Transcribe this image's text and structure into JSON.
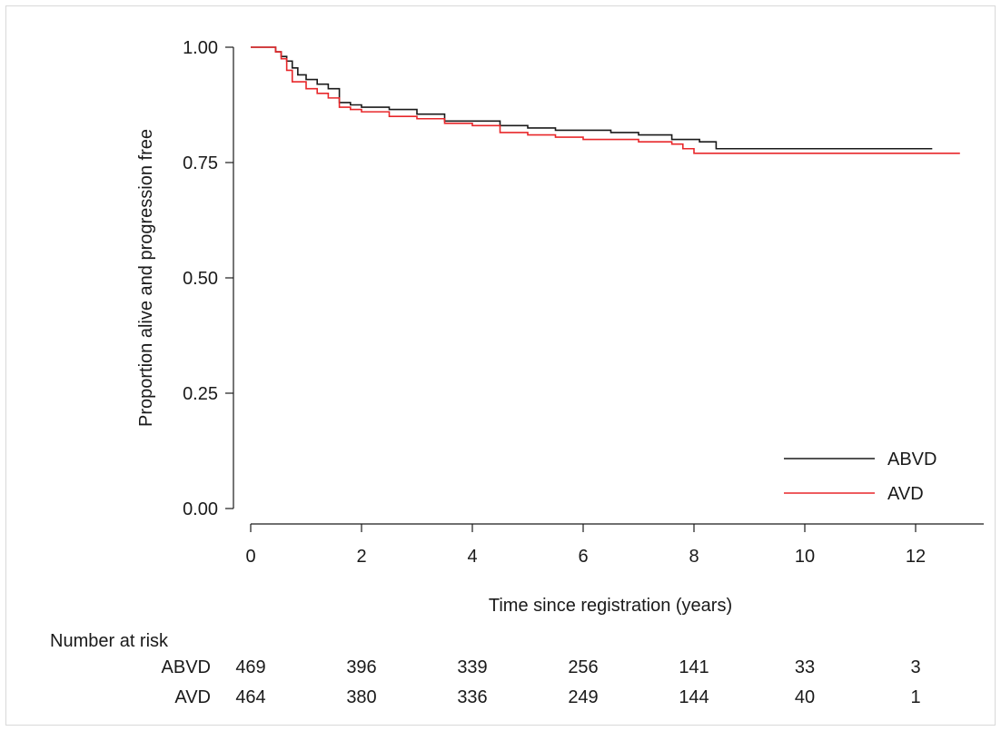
{
  "chart_data": {
    "type": "line",
    "subtype": "kaplan-meier step",
    "title": "",
    "xlabel": "Time since registration (years)",
    "ylabel": "Proportion alive and progression free",
    "xlim": [
      0,
      13
    ],
    "ylim": [
      0,
      1
    ],
    "x_ticks": [
      "0",
      "2",
      "4",
      "6",
      "8",
      "10",
      "12"
    ],
    "y_ticks": [
      "0.00",
      "0.25",
      "0.50",
      "0.75",
      "1.00"
    ],
    "grid": false,
    "legend_position": "bottom-right",
    "legend": [
      "ABVD",
      "AVD"
    ],
    "colors": {
      "ABVD": "#1a1a1a",
      "AVD": "#e8272a"
    },
    "series": [
      {
        "name": "ABVD",
        "points": [
          [
            0,
            1.0
          ],
          [
            0.3,
            1.0
          ],
          [
            0.45,
            0.99
          ],
          [
            0.55,
            0.98
          ],
          [
            0.65,
            0.97
          ],
          [
            0.75,
            0.955
          ],
          [
            0.85,
            0.94
          ],
          [
            1.0,
            0.93
          ],
          [
            1.2,
            0.92
          ],
          [
            1.4,
            0.91
          ],
          [
            1.6,
            0.88
          ],
          [
            1.8,
            0.875
          ],
          [
            2.0,
            0.87
          ],
          [
            2.5,
            0.865
          ],
          [
            3.0,
            0.855
          ],
          [
            3.5,
            0.84
          ],
          [
            4.0,
            0.84
          ],
          [
            4.5,
            0.83
          ],
          [
            5.0,
            0.825
          ],
          [
            5.5,
            0.82
          ],
          [
            6.0,
            0.82
          ],
          [
            6.5,
            0.815
          ],
          [
            7.0,
            0.81
          ],
          [
            7.6,
            0.8
          ],
          [
            8.1,
            0.795
          ],
          [
            8.4,
            0.78
          ],
          [
            10.0,
            0.78
          ],
          [
            12.3,
            0.78
          ]
        ]
      },
      {
        "name": "AVD",
        "points": [
          [
            0,
            1.0
          ],
          [
            0.3,
            1.0
          ],
          [
            0.45,
            0.99
          ],
          [
            0.55,
            0.975
          ],
          [
            0.65,
            0.95
          ],
          [
            0.75,
            0.925
          ],
          [
            1.0,
            0.91
          ],
          [
            1.2,
            0.9
          ],
          [
            1.4,
            0.89
          ],
          [
            1.6,
            0.87
          ],
          [
            1.8,
            0.865
          ],
          [
            2.0,
            0.86
          ],
          [
            2.5,
            0.85
          ],
          [
            3.0,
            0.845
          ],
          [
            3.5,
            0.835
          ],
          [
            4.0,
            0.83
          ],
          [
            4.5,
            0.815
          ],
          [
            5.0,
            0.81
          ],
          [
            5.5,
            0.805
          ],
          [
            6.0,
            0.8
          ],
          [
            6.5,
            0.8
          ],
          [
            7.0,
            0.795
          ],
          [
            7.6,
            0.79
          ],
          [
            7.8,
            0.78
          ],
          [
            8.0,
            0.77
          ],
          [
            10.0,
            0.77
          ],
          [
            12.8,
            0.77
          ]
        ]
      }
    ],
    "risk_table": {
      "header": "Number at risk",
      "rows": [
        {
          "label": "ABVD",
          "values": [
            "469",
            "396",
            "339",
            "256",
            "141",
            "33",
            "3"
          ]
        },
        {
          "label": "AVD",
          "values": [
            "464",
            "380",
            "336",
            "249",
            "144",
            "40",
            "1"
          ]
        }
      ]
    }
  }
}
